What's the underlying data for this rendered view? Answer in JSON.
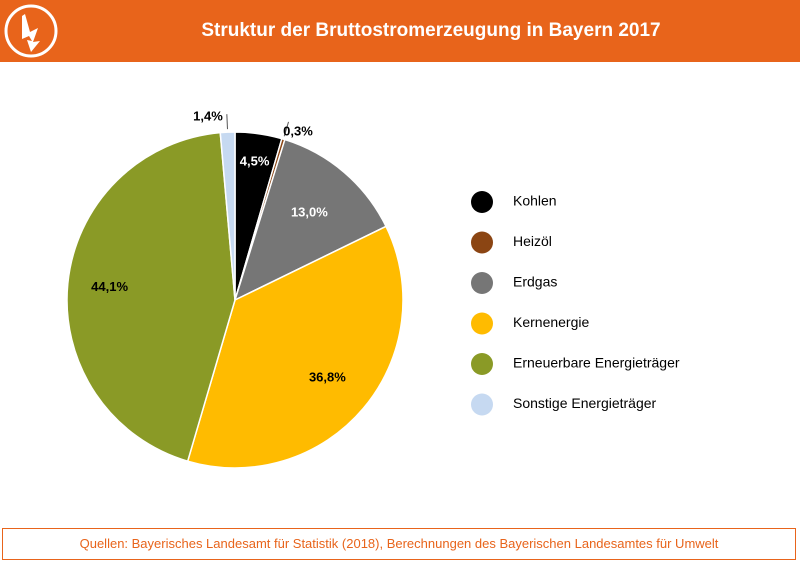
{
  "header": {
    "title": "Struktur der Bruttostromerzeugung in Bayern 2017",
    "logo_icon": "lightning-bolt-icon",
    "brand_color": "#e8641b"
  },
  "chart_data": {
    "type": "pie",
    "title": "Struktur der Bruttostromerzeugung in Bayern 2017",
    "legend_position": "right",
    "slices": [
      {
        "name": "Kohlen",
        "value": 4.5,
        "label": "4,5%",
        "color": "#000000"
      },
      {
        "name": "Heizöl",
        "value": 0.3,
        "label": "0,3%",
        "color": "#8b4513"
      },
      {
        "name": "Erdgas",
        "value": 13.0,
        "label": "13,0%",
        "color": "#767676"
      },
      {
        "name": "Kernenergie",
        "value": 36.8,
        "label": "36,8%",
        "color": "#ffbb00"
      },
      {
        "name": "Erneuerbare Energieträger",
        "value": 44.1,
        "label": "44,1%",
        "color": "#8a9a26"
      },
      {
        "name": "Sonstige Energieträger",
        "value": 1.4,
        "label": "1,4%",
        "color": "#c6d9f1"
      }
    ]
  },
  "footer": {
    "source": "Quellen: Bayerisches Landesamt für Statistik (2018), Berechnungen des Bayerischen Landesamtes für Umwelt"
  }
}
